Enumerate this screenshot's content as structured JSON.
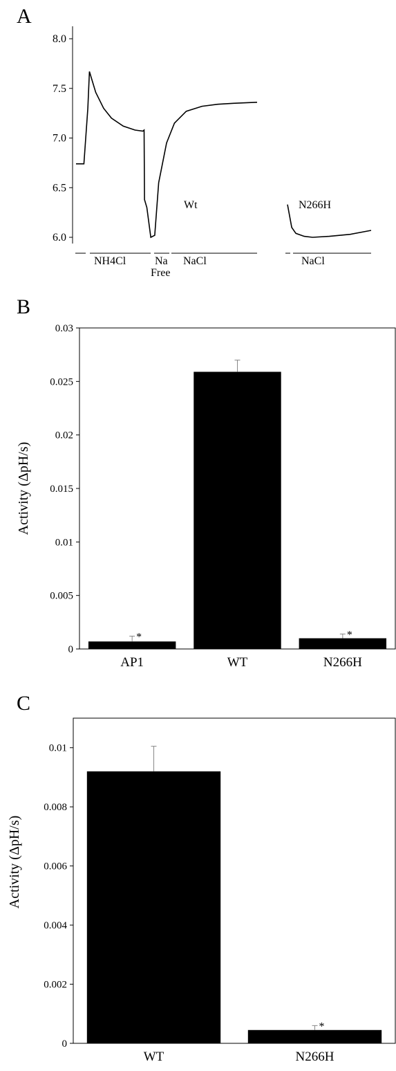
{
  "chart_data": [
    {
      "panel": "A",
      "type": "line",
      "y_ticks": [
        "8.0",
        "7.5",
        "7.0",
        "6.5",
        "6.0"
      ],
      "ylim": [
        6.0,
        8.0
      ],
      "traces": [
        {
          "name": "Wt",
          "x": [
            0,
            2,
            3,
            3.4,
            5,
            7,
            9,
            12,
            15,
            17,
            17.3,
            17.4,
            18,
            19,
            20,
            21,
            23,
            25,
            28,
            32,
            36,
            40,
            46
          ],
          "y": [
            6.74,
            6.74,
            7.3,
            7.67,
            7.46,
            7.3,
            7.2,
            7.12,
            7.08,
            7.07,
            7.08,
            6.38,
            6.3,
            6.0,
            6.02,
            6.55,
            6.95,
            7.15,
            7.27,
            7.32,
            7.34,
            7.35,
            7.36
          ]
        },
        {
          "name": "N266H",
          "x": [
            0,
            1,
            2,
            4,
            6,
            10,
            15,
            20
          ],
          "y": [
            6.33,
            6.1,
            6.04,
            6.01,
            6.0,
            6.01,
            6.03,
            6.07
          ]
        }
      ],
      "trace_labels": [
        "Wt",
        "N266H"
      ],
      "solution_labels": {
        "nh4cl": "NH4Cl",
        "na_free_1": "Na",
        "na_free_2": "Free",
        "nacl_wt": "NaCl",
        "nacl_mut": "NaCl"
      }
    },
    {
      "panel": "B",
      "type": "bar",
      "categories": [
        "AP1",
        "WT",
        "N266H"
      ],
      "values": [
        0.0007,
        0.0259,
        0.001
      ],
      "errors": [
        0.0005,
        0.0011,
        0.0004
      ],
      "significance": [
        "*",
        "",
        "*"
      ],
      "ylabel": "Activity (ΔpH/s)",
      "ylim": [
        0,
        0.03
      ],
      "y_ticks": [
        "0.03",
        "0.025",
        "0.02",
        "0.015",
        "0.01",
        "0.005",
        "0"
      ]
    },
    {
      "panel": "C",
      "type": "bar",
      "categories": [
        "WT",
        "N266H"
      ],
      "values": [
        0.0092,
        0.00045
      ],
      "errors": [
        0.00085,
        0.00015
      ],
      "significance": [
        "",
        "*"
      ],
      "ylabel": "Activity (ΔpH/s)",
      "ylim": [
        0,
        0.011
      ],
      "y_ticks": [
        "0.01",
        "0.008",
        "0.006",
        "0.004",
        "0.002",
        "0"
      ]
    }
  ],
  "panel_labels": [
    "A",
    "B",
    "C"
  ]
}
